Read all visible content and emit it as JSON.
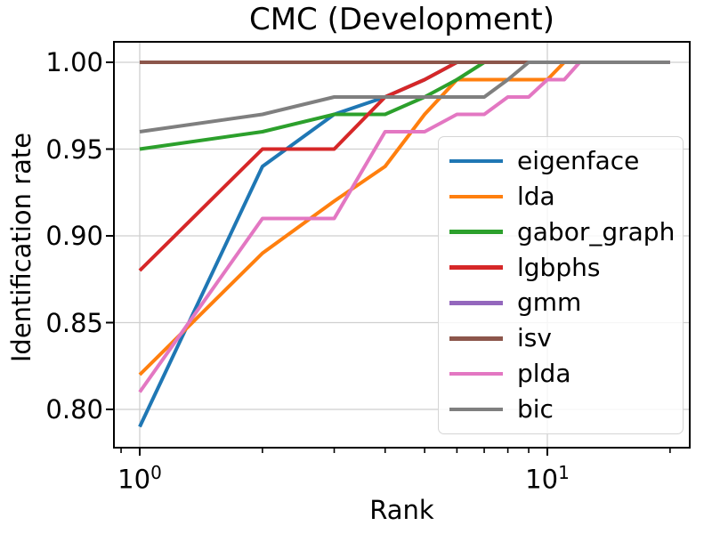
{
  "title": "CMC (Development)",
  "chart_data": {
    "type": "line",
    "title": "CMC (Development)",
    "xlabel": "Rank",
    "ylabel": "Identification rate",
    "x_scale": "log",
    "grid": true,
    "legend_position": "lower-right-inside",
    "xlim": [
      0.86,
      22.4
    ],
    "ylim": [
      0.778,
      1.012
    ],
    "x": [
      1,
      2,
      3,
      4,
      5,
      6,
      7,
      8,
      9,
      10,
      11,
      12,
      13,
      14,
      15,
      16,
      17,
      18,
      19,
      20
    ],
    "x_major_ticks": [
      {
        "value": 1,
        "base": "10",
        "exp": "0"
      },
      {
        "value": 10,
        "base": "10",
        "exp": "1"
      }
    ],
    "x_minor_ticks": [
      0.9,
      2,
      3,
      4,
      5,
      6,
      7,
      8,
      9,
      20
    ],
    "y_ticks": [
      {
        "value": 0.8,
        "label": "0.80"
      },
      {
        "value": 0.85,
        "label": "0.85"
      },
      {
        "value": 0.9,
        "label": "0.90"
      },
      {
        "value": 0.95,
        "label": "0.95"
      },
      {
        "value": 1.0,
        "label": "1.00"
      }
    ],
    "grid_color": "#cfcfcf",
    "series": [
      {
        "name": "eigenface",
        "color": "#1f77b4",
        "values": [
          0.79,
          0.94,
          0.97,
          0.98,
          0.99,
          1.0,
          1.0,
          1.0,
          1.0,
          1.0,
          1.0,
          1.0,
          1.0,
          1.0,
          1.0,
          1.0,
          1.0,
          1.0,
          1.0,
          1.0
        ]
      },
      {
        "name": "lda",
        "color": "#ff7f0e",
        "values": [
          0.82,
          0.89,
          0.92,
          0.94,
          0.97,
          0.99,
          0.99,
          0.99,
          0.99,
          0.99,
          1.0,
          1.0,
          1.0,
          1.0,
          1.0,
          1.0,
          1.0,
          1.0,
          1.0,
          1.0
        ]
      },
      {
        "name": "gabor_graph",
        "color": "#2ca02c",
        "values": [
          0.95,
          0.96,
          0.97,
          0.97,
          0.98,
          0.99,
          1.0,
          1.0,
          1.0,
          1.0,
          1.0,
          1.0,
          1.0,
          1.0,
          1.0,
          1.0,
          1.0,
          1.0,
          1.0,
          1.0
        ]
      },
      {
        "name": "lgbphs",
        "color": "#d62728",
        "values": [
          0.88,
          0.95,
          0.95,
          0.98,
          0.99,
          1.0,
          1.0,
          1.0,
          1.0,
          1.0,
          1.0,
          1.0,
          1.0,
          1.0,
          1.0,
          1.0,
          1.0,
          1.0,
          1.0,
          1.0
        ]
      },
      {
        "name": "gmm",
        "color": "#9467bd",
        "values": [
          1.0,
          1.0,
          1.0,
          1.0,
          1.0,
          1.0,
          1.0,
          1.0,
          1.0,
          1.0,
          1.0,
          1.0,
          1.0,
          1.0,
          1.0,
          1.0,
          1.0,
          1.0,
          1.0,
          1.0
        ]
      },
      {
        "name": "isv",
        "color": "#8c564b",
        "values": [
          1.0,
          1.0,
          1.0,
          1.0,
          1.0,
          1.0,
          1.0,
          1.0,
          1.0,
          1.0,
          1.0,
          1.0,
          1.0,
          1.0,
          1.0,
          1.0,
          1.0,
          1.0,
          1.0,
          1.0
        ]
      },
      {
        "name": "plda",
        "color": "#e377c2",
        "values": [
          0.81,
          0.91,
          0.91,
          0.96,
          0.96,
          0.97,
          0.97,
          0.98,
          0.98,
          0.99,
          0.99,
          1.0,
          1.0,
          1.0,
          1.0,
          1.0,
          1.0,
          1.0,
          1.0,
          1.0
        ]
      },
      {
        "name": "bic",
        "color": "#7f7f7f",
        "values": [
          0.96,
          0.97,
          0.98,
          0.98,
          0.98,
          0.98,
          0.98,
          0.99,
          1.0,
          1.0,
          1.0,
          1.0,
          1.0,
          1.0,
          1.0,
          1.0,
          1.0,
          1.0,
          1.0,
          1.0
        ]
      }
    ]
  }
}
